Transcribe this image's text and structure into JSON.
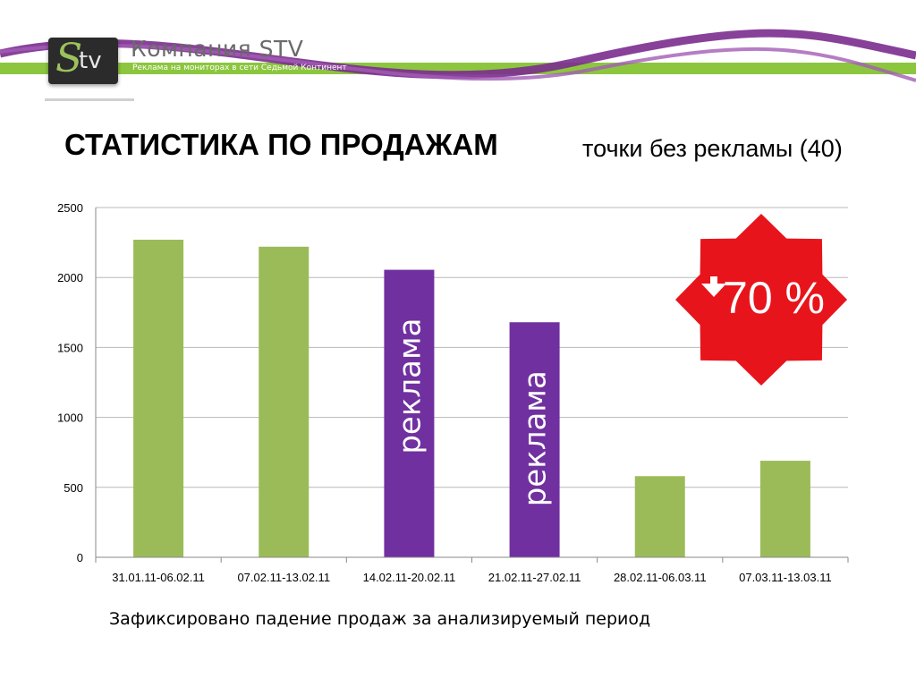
{
  "header": {
    "company_name": "Компания STV",
    "tagline": "Реклама на мониторах в сети Седьмой Континент",
    "logo_letters": "Stv"
  },
  "title": "СТАТИСТИКА ПО ПРОДАЖАМ",
  "subtitle": "точки без рекламы (40)",
  "badge": {
    "text": "70 %",
    "icon": "arrow-down-icon",
    "color": "#e8141c"
  },
  "footer_note": "Зафиксировано падение продаж за анализируемый период",
  "chart_data": {
    "type": "bar",
    "categories": [
      "31.01.11-06.02.11",
      "07.02.11-13.02.11",
      "14.02.11-20.02.11",
      "21.02.11-27.02.11",
      "28.02.11-06.03.11",
      "07.03.11-13.03.11"
    ],
    "values": [
      2270,
      2220,
      2055,
      1680,
      580,
      690
    ],
    "bar_colors": [
      "#9bbb59",
      "#9bbb59",
      "#7030a0",
      "#7030a0",
      "#9bbb59",
      "#9bbb59"
    ],
    "bar_labels": [
      "",
      "",
      "реклама",
      "реклама",
      "",
      ""
    ],
    "ylim": [
      0,
      2500
    ],
    "yticks": [
      0,
      500,
      1000,
      1500,
      2000,
      2500
    ],
    "grid": true,
    "title": "",
    "xlabel": "",
    "ylabel": ""
  }
}
